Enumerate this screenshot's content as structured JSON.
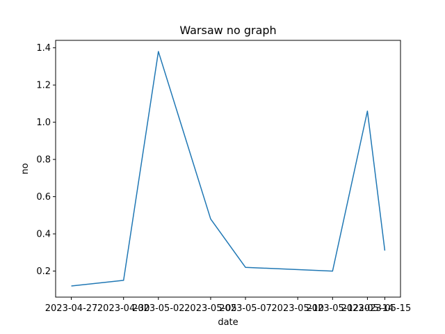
{
  "chart_data": {
    "type": "line",
    "title": "Warsaw no graph",
    "xlabel": "date",
    "ylabel": "no",
    "x_tick_labels": [
      "2023-04-27",
      "2023-04-30",
      "2023-05-02",
      "2023-05-05",
      "2023-05-07",
      "2023-05-10",
      "2023-05-12",
      "2023-05-14",
      "2023-05-15"
    ],
    "y_tick_labels": [
      "0.2",
      "0.4",
      "0.6",
      "0.8",
      "1.0",
      "1.2",
      "1.4"
    ],
    "y_ticks": [
      0.2,
      0.4,
      0.6,
      0.8,
      1.0,
      1.2,
      1.4
    ],
    "ylim": [
      0.06,
      1.44
    ],
    "x": [
      "2023-04-27",
      "2023-04-30",
      "2023-05-02",
      "2023-05-05",
      "2023-05-07",
      "2023-05-12",
      "2023-05-14",
      "2023-05-15"
    ],
    "series": [
      {
        "values": [
          0.12,
          0.15,
          1.38,
          0.48,
          0.22,
          0.2,
          1.06,
          0.31
        ],
        "color": "#1f77b4"
      }
    ],
    "grid": false
  }
}
